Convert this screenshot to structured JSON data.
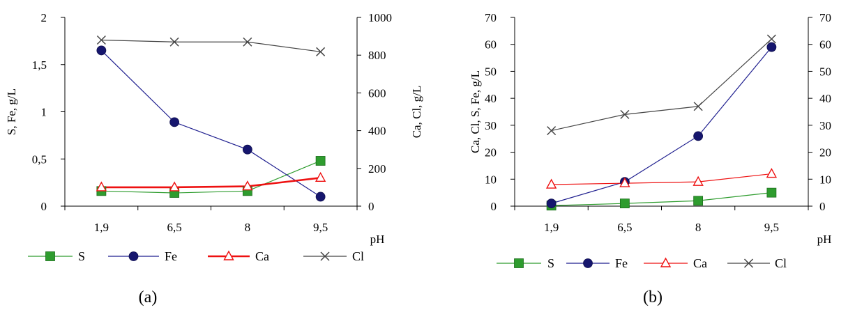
{
  "chart_data": [
    {
      "type": "line",
      "panel_caption": "(a)",
      "categories": [
        "1,9",
        "6,5",
        "8",
        "9,5"
      ],
      "xlabel": "pH",
      "ylabel_left": "S, Fe, g/L",
      "ylabel_right": "Ca, Cl, g/L",
      "ylim_left": [
        0,
        2
      ],
      "ylim_right": [
        0,
        1000
      ],
      "yticks_left": [
        "0",
        "0,5",
        "1",
        "1,5",
        "2"
      ],
      "yticks_right": [
        "0",
        "200",
        "400",
        "600",
        "800",
        "1000"
      ],
      "grid": false,
      "legend_position": "bottom",
      "series": [
        {
          "name": "S",
          "axis": "left",
          "values": [
            0.16,
            0.14,
            0.16,
            0.48
          ],
          "color": "#2e9c2e",
          "marker": "square"
        },
        {
          "name": "Fe",
          "axis": "left",
          "values": [
            1.65,
            0.89,
            0.6,
            0.1
          ],
          "color": "#1f1f8f",
          "marker": "circle"
        },
        {
          "name": "Ca",
          "axis": "right",
          "values": [
            100,
            100,
            105,
            150
          ],
          "color": "#ee1111",
          "marker": "triangle"
        },
        {
          "name": "Cl",
          "axis": "right",
          "values": [
            880,
            870,
            870,
            818
          ],
          "color": "#444444",
          "marker": "x"
        }
      ]
    },
    {
      "type": "line",
      "panel_caption": "(b)",
      "categories": [
        "1,9",
        "6,5",
        "8",
        "9,5"
      ],
      "xlabel": "pH",
      "ylabel_left": "Ca, Cl, S, Fe, g/L",
      "ylabel_right": "",
      "ylim_left": [
        0,
        70
      ],
      "ylim_right": [
        0,
        70
      ],
      "yticks_left": [
        "0",
        "10",
        "20",
        "30",
        "40",
        "50",
        "60",
        "70"
      ],
      "yticks_right": [
        "0",
        "10",
        "20",
        "30",
        "40",
        "50",
        "60",
        "70"
      ],
      "grid": false,
      "legend_position": "bottom",
      "series": [
        {
          "name": "S",
          "axis": "left",
          "values": [
            0.2,
            1,
            2,
            5
          ],
          "color": "#2e9c2e",
          "marker": "square"
        },
        {
          "name": "Fe",
          "axis": "left",
          "values": [
            1,
            9,
            26,
            59
          ],
          "color": "#1f1f8f",
          "marker": "circle"
        },
        {
          "name": "Ca",
          "axis": "left",
          "values": [
            8,
            8.5,
            9,
            12
          ],
          "color": "#ee1111",
          "marker": "triangle"
        },
        {
          "name": "Cl",
          "axis": "left",
          "values": [
            28,
            34,
            37,
            62
          ],
          "color": "#444444",
          "marker": "x"
        }
      ]
    }
  ]
}
